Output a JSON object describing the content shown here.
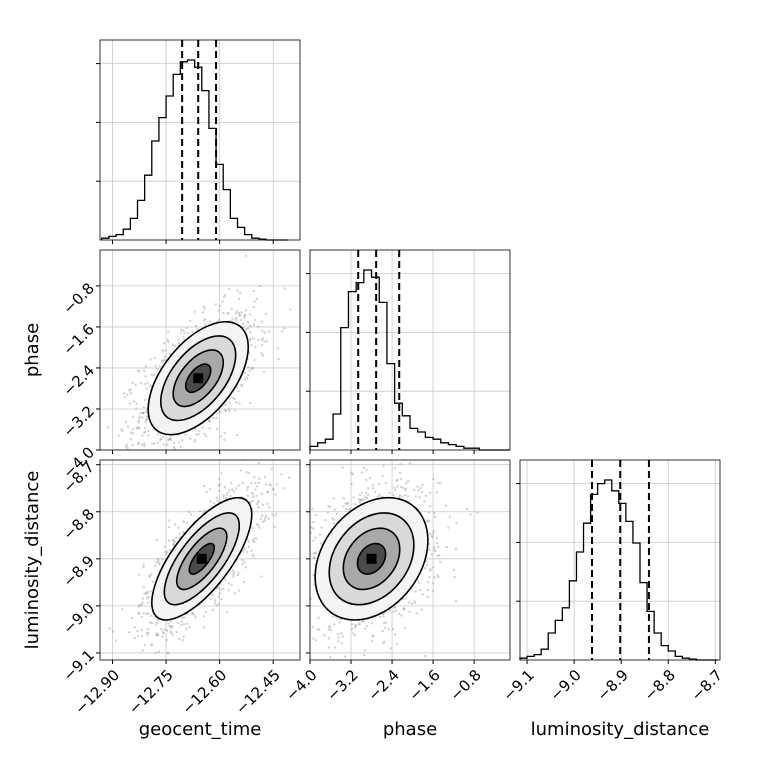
{
  "chart_data": {
    "type": "corner",
    "title": "",
    "parameters": [
      "geocent_time",
      "phase",
      "luminosity_distance"
    ],
    "axes": {
      "geocent_time": {
        "range": [
          -12.935,
          -12.375
        ],
        "ticks": [
          -12.9,
          -12.75,
          -12.6,
          -12.45
        ],
        "tick_labels": [
          "−12.90",
          "−12.75",
          "−12.60",
          "−12.45"
        ]
      },
      "phase": {
        "range": [
          -4.0,
          -0.1
        ],
        "ticks": [
          -4.0,
          -3.2,
          -2.4,
          -1.6,
          -0.8
        ],
        "tick_labels": [
          "−4.0",
          "−3.2",
          "−2.4",
          "−1.6",
          "−0.8"
        ]
      },
      "luminosity_distance": {
        "range": [
          -9.115,
          -8.69
        ],
        "ticks": [
          -9.1,
          -9.0,
          -8.9,
          -8.8,
          -8.7
        ],
        "tick_labels": [
          "−9.1",
          "−9.0",
          "−8.9",
          "−8.8",
          "−8.7"
        ]
      }
    },
    "marginals": {
      "geocent_time": {
        "bin_edges": [
          -12.93,
          -12.91,
          -12.89,
          -12.87,
          -12.85,
          -12.83,
          -12.81,
          -12.79,
          -12.77,
          -12.75,
          -12.73,
          -12.71,
          -12.69,
          -12.67,
          -12.65,
          -12.63,
          -12.61,
          -12.59,
          -12.57,
          -12.55,
          -12.53,
          -12.51,
          -12.49,
          -12.47,
          -12.45,
          -12.43,
          -12.41
        ],
        "counts": [
          0.01,
          0.02,
          0.03,
          0.06,
          0.12,
          0.22,
          0.36,
          0.55,
          0.68,
          0.8,
          0.92,
          0.99,
          1.0,
          0.96,
          0.83,
          0.62,
          0.42,
          0.28,
          0.12,
          0.07,
          0.03,
          0.01,
          0.005,
          0,
          0,
          0
        ],
        "quantiles": [
          -12.705,
          -12.66,
          -12.61
        ]
      },
      "phase": {
        "bin_edges": [
          -4.0,
          -3.85,
          -3.7,
          -3.55,
          -3.4,
          -3.25,
          -3.1,
          -2.95,
          -2.8,
          -2.65,
          -2.5,
          -2.35,
          -2.2,
          -2.05,
          -1.9,
          -1.75,
          -1.6,
          -1.45,
          -1.3,
          -1.15,
          -1.0,
          -0.85,
          -0.7,
          -0.55,
          -0.4,
          -0.25,
          -0.1
        ],
        "counts": [
          0.02,
          0.04,
          0.06,
          0.2,
          0.68,
          0.88,
          0.93,
          1.0,
          0.96,
          0.82,
          0.48,
          0.26,
          0.19,
          0.12,
          0.1,
          0.07,
          0.06,
          0.04,
          0.03,
          0.02,
          0.01,
          0.01,
          0,
          0,
          0,
          0
        ],
        "quantiles": [
          -3.06,
          -2.71,
          -2.26
        ]
      },
      "luminosity_distance": {
        "bin_edges": [
          -9.115,
          -9.1,
          -9.085,
          -9.07,
          -9.055,
          -9.04,
          -9.025,
          -9.01,
          -8.995,
          -8.98,
          -8.965,
          -8.95,
          -8.935,
          -8.92,
          -8.905,
          -8.89,
          -8.875,
          -8.86,
          -8.845,
          -8.83,
          -8.815,
          -8.8,
          -8.785,
          -8.77,
          -8.755,
          -8.74,
          -8.725,
          -8.71,
          -8.695
        ],
        "counts": [
          0.01,
          0.02,
          0.03,
          0.06,
          0.15,
          0.22,
          0.29,
          0.44,
          0.6,
          0.76,
          0.92,
          0.98,
          1.0,
          0.94,
          0.87,
          0.77,
          0.65,
          0.43,
          0.27,
          0.15,
          0.08,
          0.05,
          0.02,
          0.01,
          0.005,
          0,
          0,
          0
        ],
        "quantiles": [
          -8.962,
          -8.902,
          -8.841
        ]
      }
    },
    "joint": [
      {
        "x": "geocent_time",
        "y": "phase",
        "mean": [
          -12.66,
          -2.6
        ],
        "std": [
          0.07,
          0.55
        ],
        "corr": 0.55
      },
      {
        "x": "geocent_time",
        "y": "luminosity_distance",
        "mean": [
          -12.65,
          -8.9
        ],
        "std": [
          0.07,
          0.065
        ],
        "corr": 0.72
      },
      {
        "x": "phase",
        "y": "luminosity_distance",
        "mean": [
          -2.8,
          -8.9
        ],
        "std": [
          0.55,
          0.065
        ],
        "corr": 0.3
      }
    ],
    "grid": true,
    "legend": "none"
  }
}
